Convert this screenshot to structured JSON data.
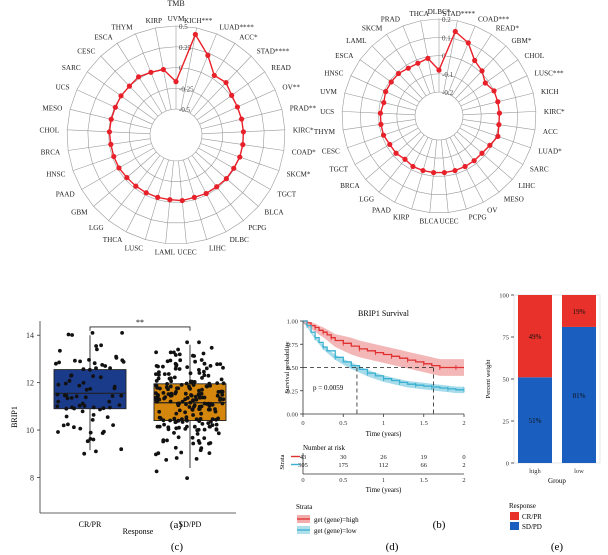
{
  "chart_data": [
    {
      "type": "radar",
      "panel": "(a)",
      "center_label": "TMB",
      "r_ticks": [
        "0.5",
        "0.25",
        "0",
        "-0.25",
        "-0.5"
      ],
      "rlim": [
        -0.5,
        0.5
      ],
      "categories": [
        "UVM",
        "KICH***",
        "LUAD****",
        "ACC*",
        "STAD****",
        "READ",
        "OV**",
        "PRAD**",
        "KIRC*",
        "COAD*",
        "SKCM*",
        "TGCT",
        "BLCA",
        "PCPG",
        "DLBC",
        "LIHC",
        "UCEC",
        "LAML",
        "LUSC",
        "THCA",
        "LGG",
        "GBM",
        "PAAD",
        "HNSC",
        "BRCA",
        "CHOL",
        "MESO",
        "UCS",
        "SARC",
        "CESC",
        "ESCA",
        "THYM",
        "KIRP"
      ],
      "values": [
        -0.17,
        0.42,
        0.22,
        0.04,
        0.06,
        0.01,
        0.0,
        0.0,
        0.0,
        0.0,
        0.0,
        -0.01,
        -0.01,
        -0.02,
        -0.02,
        -0.03,
        -0.02,
        -0.03,
        -0.03,
        -0.03,
        -0.03,
        -0.03,
        -0.02,
        -0.02,
        -0.02,
        -0.01,
        -0.01,
        -0.01,
        -0.0,
        0.0,
        0.02,
        0.0,
        -0.01
      ]
    },
    {
      "type": "radar",
      "panel": "(b)",
      "center_label": "MSI",
      "r_ticks": [
        "0.2",
        "0.1",
        "0",
        "-0.1",
        "-0.2"
      ],
      "rlim": [
        -0.2,
        0.2
      ],
      "categories": [
        "DLBC*",
        "STAD****",
        "COAD***",
        "READ*",
        "GBM*",
        "CHOL",
        "LUSC***",
        "KICH",
        "KIRC*",
        "ACC",
        "LUAD*",
        "SARC",
        "LIHC",
        "MESO",
        "OV",
        "PCPG",
        "UCEC",
        "BLCA",
        "KIRP",
        "PAAD",
        "LGG",
        "BRCA",
        "TGCT",
        "CESC",
        "THYM",
        "UCS",
        "UVM",
        "HNSC",
        "ESCA",
        "LAML",
        "SKCM",
        "PRAD",
        "THCA"
      ],
      "values": [
        -0.08,
        0.14,
        0.1,
        0.03,
        0.01,
        -0.02,
        0.0,
        0.0,
        0.0,
        0.0,
        0.01,
        -0.01,
        -0.02,
        -0.02,
        -0.02,
        -0.02,
        -0.02,
        -0.02,
        -0.02,
        -0.02,
        -0.03,
        -0.02,
        -0.02,
        -0.01,
        -0.01,
        -0.01,
        -0.02,
        -0.01,
        -0.01,
        -0.01,
        -0.02,
        -0.02,
        -0.01
      ]
    },
    {
      "type": "box",
      "panel": "(c)",
      "ylabel": "BRIP1",
      "xlabel": "Response",
      "categories": [
        "CR/PR",
        "SD/PD"
      ],
      "colors": [
        "#1a3a8a",
        "#d4870c"
      ],
      "significance": "**",
      "ylim": [
        6.5,
        14.6
      ],
      "y_ticks": [
        8,
        10,
        12,
        14
      ],
      "boxes": [
        {
          "name": "CR/PR",
          "q1": 10.9,
          "median": 11.55,
          "q3": 12.55,
          "whisker_low": 9.15,
          "whisker_high": 14.0
        },
        {
          "name": "SD/PD",
          "q1": 10.4,
          "median": 11.15,
          "q3": 11.95,
          "whisker_low": 8.4,
          "whisker_high": 13.6
        }
      ]
    },
    {
      "type": "line",
      "panel": "(d)",
      "title": "BRIP1 Survival",
      "xlabel": "Time (years)",
      "ylabel": "Survival probability",
      "xlim": [
        0,
        2
      ],
      "ylim": [
        0,
        1
      ],
      "x_ticks": [
        "0",
        "0.5",
        "1",
        "1.5",
        "2"
      ],
      "y_ticks": [
        "0.00",
        "0.25",
        "0.50",
        "0.75",
        "1.00"
      ],
      "pvalue": "p = 0.0059",
      "median_survival": [
        0.67,
        1.62
      ],
      "series": [
        {
          "name": "get (gene)=high",
          "color": "#e03030",
          "x": [
            0,
            0.05,
            0.1,
            0.15,
            0.2,
            0.25,
            0.3,
            0.35,
            0.4,
            0.5,
            0.6,
            0.7,
            0.8,
            0.9,
            1.0,
            1.1,
            1.2,
            1.3,
            1.4,
            1.5,
            1.6,
            1.7,
            1.8,
            1.9,
            2.0
          ],
          "y": [
            1.0,
            0.98,
            0.95,
            0.93,
            0.9,
            0.88,
            0.85,
            0.82,
            0.79,
            0.76,
            0.73,
            0.7,
            0.68,
            0.66,
            0.64,
            0.62,
            0.6,
            0.58,
            0.56,
            0.54,
            0.52,
            0.5,
            0.5,
            0.5,
            0.5
          ]
        },
        {
          "name": "get (gene)=low",
          "color": "#3ab0d0",
          "x": [
            0,
            0.05,
            0.1,
            0.15,
            0.2,
            0.25,
            0.3,
            0.4,
            0.5,
            0.6,
            0.7,
            0.8,
            0.9,
            1.0,
            1.1,
            1.2,
            1.3,
            1.4,
            1.5,
            1.6,
            1.7,
            1.8,
            1.9,
            2.0
          ],
          "y": [
            1.0,
            0.95,
            0.88,
            0.82,
            0.77,
            0.72,
            0.68,
            0.61,
            0.56,
            0.52,
            0.48,
            0.44,
            0.41,
            0.38,
            0.36,
            0.34,
            0.32,
            0.31,
            0.3,
            0.29,
            0.28,
            0.27,
            0.26,
            0.26
          ]
        }
      ],
      "risk_table": {
        "title": "Number at risk",
        "strata_label": "Strata",
        "times": [
          "0",
          "0.5",
          "1",
          "1.5",
          "2"
        ],
        "rows": [
          {
            "name": "high",
            "color": "#e03030",
            "counts": [
              "43",
              "30",
              "26",
              "19",
              "0"
            ]
          },
          {
            "name": "low",
            "color": "#3ab0d0",
            "counts": [
              "305",
              "175",
              "112",
              "66",
              "2"
            ]
          }
        ]
      },
      "legend_title": "Strata",
      "legend_entries": [
        "get (gene)=high",
        "get (gene)=low"
      ]
    },
    {
      "type": "bar",
      "panel": "(e)",
      "stacked": true,
      "categories": [
        "high",
        "low"
      ],
      "xlabel": "Group",
      "ylabel": "Percent weight",
      "ylim": [
        0,
        100
      ],
      "y_ticks": [
        0,
        25,
        50,
        75,
        100
      ],
      "series": [
        {
          "name": "SD/PD",
          "color": "#1a5ec0",
          "values": [
            51,
            81
          ],
          "labels": [
            "51%",
            "81%"
          ]
        },
        {
          "name": "CR/PR",
          "color": "#e8312a",
          "values": [
            49,
            19
          ],
          "labels": [
            "49%",
            "19%"
          ]
        }
      ],
      "legend_title": "Response",
      "legend_entries": [
        "CR/PR",
        "SD/PD"
      ]
    }
  ]
}
